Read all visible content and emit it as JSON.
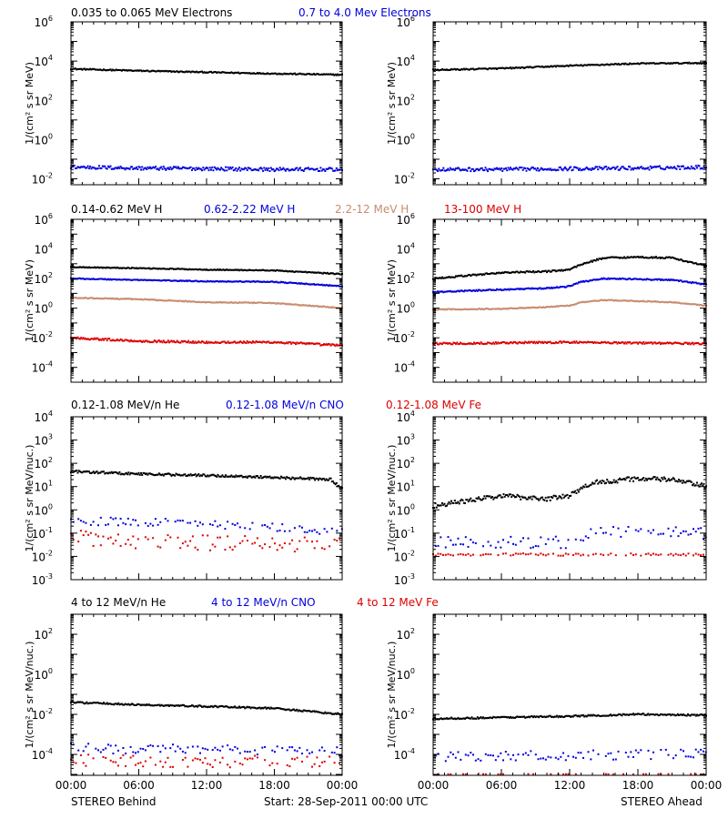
{
  "colors": {
    "black": "#000000",
    "blue": "#0000dd",
    "tan": "#c88c6e",
    "red": "#dd0000",
    "background": "#ffffff"
  },
  "footer": {
    "left": "STEREO Behind",
    "center": "Start: 28-Sep-2011 00:00 UTC",
    "right": "STEREO Ahead"
  },
  "x_ticks": [
    "00:00",
    "06:00",
    "12:00",
    "18:00",
    "00:00"
  ],
  "chart_data": [
    {
      "row": "electrons",
      "type": "scatter",
      "y_scale": "log",
      "ylabel": "1/(cm² s sr MeV)",
      "ylim": [
        0.005,
        1000000
      ],
      "y_ticks": [
        {
          "exp": -2,
          "label": "10",
          "sup": "-2"
        },
        {
          "exp": 0,
          "label": "10",
          "sup": "0"
        },
        {
          "exp": 2,
          "label": "10",
          "sup": "2"
        },
        {
          "exp": 4,
          "label": "10",
          "sup": "4"
        },
        {
          "exp": 6,
          "label": "10",
          "sup": "6"
        }
      ],
      "legend": [
        {
          "text": "0.035 to 0.065 MeV Electrons",
          "color": "#000000"
        },
        {
          "text": "0.7 to 4.0 Mev Electrons",
          "color": "#0000dd"
        }
      ],
      "panels": {
        "behind": [
          {
            "color": "#000000",
            "style": "line",
            "x_hours": [
              0,
              6,
              12,
              18,
              24
            ],
            "y_values": [
              4000,
              3200,
              2700,
              2300,
              2000
            ],
            "noise_dex": 0.03
          },
          {
            "color": "#0000dd",
            "style": "line",
            "x_hours": [
              0,
              6,
              12,
              18,
              24
            ],
            "y_values": [
              0.04,
              0.035,
              0.033,
              0.03,
              0.03
            ],
            "noise_dex": 0.09
          }
        ],
        "ahead": [
          {
            "color": "#000000",
            "style": "line",
            "x_hours": [
              0,
              6,
              12,
              18,
              24
            ],
            "y_values": [
              3500,
              4200,
              5800,
              7500,
              8000
            ],
            "noise_dex": 0.03
          },
          {
            "color": "#0000dd",
            "style": "line",
            "x_hours": [
              0,
              6,
              12,
              18,
              24
            ],
            "y_values": [
              0.03,
              0.03,
              0.033,
              0.035,
              0.04
            ],
            "noise_dex": 0.09
          }
        ]
      }
    },
    {
      "row": "protons",
      "type": "scatter",
      "y_scale": "log",
      "ylabel": "1/(cm² s sr MeV)",
      "ylim": [
        1e-05,
        1000000
      ],
      "y_ticks": [
        {
          "exp": -4,
          "label": "10",
          "sup": "-4"
        },
        {
          "exp": -2,
          "label": "10",
          "sup": "-2"
        },
        {
          "exp": 0,
          "label": "10",
          "sup": "0"
        },
        {
          "exp": 2,
          "label": "10",
          "sup": "2"
        },
        {
          "exp": 4,
          "label": "10",
          "sup": "4"
        },
        {
          "exp": 6,
          "label": "10",
          "sup": "6"
        }
      ],
      "legend": [
        {
          "text": "0.14-0.62 MeV H",
          "color": "#000000"
        },
        {
          "text": "0.62-2.22 MeV H",
          "color": "#0000dd"
        },
        {
          "text": "2.2-12 MeV H",
          "color": "#c88c6e"
        },
        {
          "text": "13-100 MeV H",
          "color": "#dd0000"
        }
      ],
      "panels": {
        "behind": [
          {
            "color": "#000000",
            "style": "line",
            "x_hours": [
              0,
              6,
              12,
              18,
              24
            ],
            "y_values": [
              600,
              500,
              400,
              350,
              200
            ],
            "noise_dex": 0.03
          },
          {
            "color": "#0000dd",
            "style": "line",
            "x_hours": [
              0,
              6,
              12,
              18,
              24
            ],
            "y_values": [
              100,
              80,
              65,
              60,
              30
            ],
            "noise_dex": 0.03
          },
          {
            "color": "#c88c6e",
            "style": "line",
            "x_hours": [
              0,
              6,
              12,
              18,
              24
            ],
            "y_values": [
              5,
              4,
              2.5,
              2.2,
              1
            ],
            "noise_dex": 0.03
          },
          {
            "color": "#dd0000",
            "style": "line",
            "x_hours": [
              0,
              6,
              12,
              18,
              24
            ],
            "y_values": [
              0.01,
              0.006,
              0.005,
              0.005,
              0.003
            ],
            "noise_dex": 0.07
          }
        ],
        "ahead": [
          {
            "color": "#000000",
            "style": "line",
            "x_hours": [
              0,
              6,
              10,
              12,
              13,
              15,
              18,
              21,
              24
            ],
            "y_values": [
              100,
              250,
              300,
              400,
              900,
              2500,
              2800,
              2500,
              700
            ],
            "noise_dex": 0.05
          },
          {
            "color": "#0000dd",
            "style": "line",
            "x_hours": [
              0,
              6,
              10,
              12,
              13,
              15,
              18,
              21,
              24
            ],
            "y_values": [
              12,
              18,
              22,
              30,
              60,
              100,
              90,
              80,
              40
            ],
            "noise_dex": 0.04
          },
          {
            "color": "#c88c6e",
            "style": "line",
            "x_hours": [
              0,
              6,
              10,
              12,
              13,
              15,
              18,
              21,
              24
            ],
            "y_values": [
              0.8,
              0.9,
              1.2,
              1.5,
              2.5,
              3.5,
              3,
              2.5,
              1.5
            ],
            "noise_dex": 0.03
          },
          {
            "color": "#dd0000",
            "style": "line",
            "x_hours": [
              0,
              6,
              12,
              18,
              24
            ],
            "y_values": [
              0.004,
              0.0045,
              0.005,
              0.0045,
              0.004
            ],
            "noise_dex": 0.06
          }
        ]
      }
    },
    {
      "row": "low-energy-heavy-ions",
      "type": "scatter",
      "y_scale": "log",
      "ylabel": "1/(cm² s sr MeV/nuc.)",
      "ylim": [
        0.001,
        10000
      ],
      "y_ticks": [
        {
          "exp": -3,
          "label": "10",
          "sup": "-3"
        },
        {
          "exp": -2,
          "label": "10",
          "sup": "-2"
        },
        {
          "exp": -1,
          "label": "10",
          "sup": "-1"
        },
        {
          "exp": 0,
          "label": "10",
          "sup": "0"
        },
        {
          "exp": 1,
          "label": "10",
          "sup": "1"
        },
        {
          "exp": 2,
          "label": "10",
          "sup": "2"
        },
        {
          "exp": 3,
          "label": "10",
          "sup": "3"
        },
        {
          "exp": 4,
          "label": "10",
          "sup": "4"
        }
      ],
      "legend": [
        {
          "text": "0.12-1.08 MeV/n He",
          "color": "#000000"
        },
        {
          "text": "0.12-1.08 MeV/n CNO",
          "color": "#0000dd"
        },
        {
          "text": "0.12-1.08 MeV Fe",
          "color": "#dd0000"
        }
      ],
      "panels": {
        "behind": [
          {
            "color": "#000000",
            "style": "line",
            "x_hours": [
              0,
              6,
              12,
              18,
              23,
              24
            ],
            "y_values": [
              45,
              35,
              30,
              25,
              20,
              8
            ],
            "noise_dex": 0.05
          },
          {
            "color": "#0000dd",
            "style": "scatter",
            "x_hours": [
              0,
              12,
              24
            ],
            "y_values": [
              0.35,
              0.25,
              0.12
            ],
            "noise_dex": 0.18
          },
          {
            "color": "#dd0000",
            "style": "scatter",
            "x_hours": [
              0,
              12,
              24
            ],
            "y_values": [
              0.06,
              0.04,
              0.03
            ],
            "noise_dex": 0.35
          }
        ],
        "ahead": [
          {
            "color": "#000000",
            "style": "line",
            "x_hours": [
              0,
              6,
              10,
              12,
              14,
              18,
              21,
              24
            ],
            "y_values": [
              1.5,
              4,
              3,
              4,
              15,
              22,
              20,
              10
            ],
            "noise_dex": 0.1
          },
          {
            "color": "#0000dd",
            "style": "scatter",
            "x_hours": [
              0,
              12,
              14,
              24
            ],
            "y_values": [
              0.04,
              0.04,
              0.12,
              0.1
            ],
            "noise_dex": 0.25
          },
          {
            "color": "#dd0000",
            "style": "scatter",
            "x_hours": [
              0,
              24
            ],
            "y_values": [
              0.012,
              0.012
            ],
            "noise_dex": 0.05
          }
        ]
      }
    },
    {
      "row": "high-energy-heavy-ions",
      "type": "scatter",
      "y_scale": "log",
      "ylabel": "1/(cm² s sr MeV/nuc.)",
      "ylim": [
        9e-06,
        1000
      ],
      "y_ticks": [
        {
          "exp": -4,
          "label": "10",
          "sup": "-4"
        },
        {
          "exp": -2,
          "label": "10",
          "sup": "-2"
        },
        {
          "exp": 0,
          "label": "10",
          "sup": "0"
        },
        {
          "exp": 2,
          "label": "10",
          "sup": "2"
        }
      ],
      "legend": [
        {
          "text": "4 to 12 MeV/n He",
          "color": "#000000"
        },
        {
          "text": "4 to 12 MeV/n CNO",
          "color": "#0000dd"
        },
        {
          "text": "4 to 12 MeV Fe",
          "color": "#dd0000"
        }
      ],
      "panels": {
        "behind": [
          {
            "color": "#000000",
            "style": "line",
            "x_hours": [
              0,
              6,
              12,
              18,
              24
            ],
            "y_values": [
              0.04,
              0.03,
              0.025,
              0.02,
              0.01
            ],
            "noise_dex": 0.04
          },
          {
            "color": "#0000dd",
            "style": "scatter",
            "x_hours": [
              0,
              24
            ],
            "y_values": [
              0.0002,
              0.00015
            ],
            "noise_dex": 0.25
          },
          {
            "color": "#dd0000",
            "style": "scatter",
            "x_hours": [
              0,
              24
            ],
            "y_values": [
              5e-05,
              4e-05
            ],
            "noise_dex": 0.3
          }
        ],
        "ahead": [
          {
            "color": "#000000",
            "style": "line",
            "x_hours": [
              0,
              6,
              12,
              18,
              24
            ],
            "y_values": [
              0.006,
              0.007,
              0.008,
              0.01,
              0.009
            ],
            "noise_dex": 0.04
          },
          {
            "color": "#0000dd",
            "style": "scatter",
            "x_hours": [
              0,
              24
            ],
            "y_values": [
              8e-05,
              0.0001
            ],
            "noise_dex": 0.25
          },
          {
            "color": "#dd0000",
            "style": "scatter",
            "x_hours": [
              0,
              24
            ],
            "y_values": [
              1e-05,
              1e-05
            ],
            "noise_dex": 0.02
          }
        ]
      }
    }
  ]
}
